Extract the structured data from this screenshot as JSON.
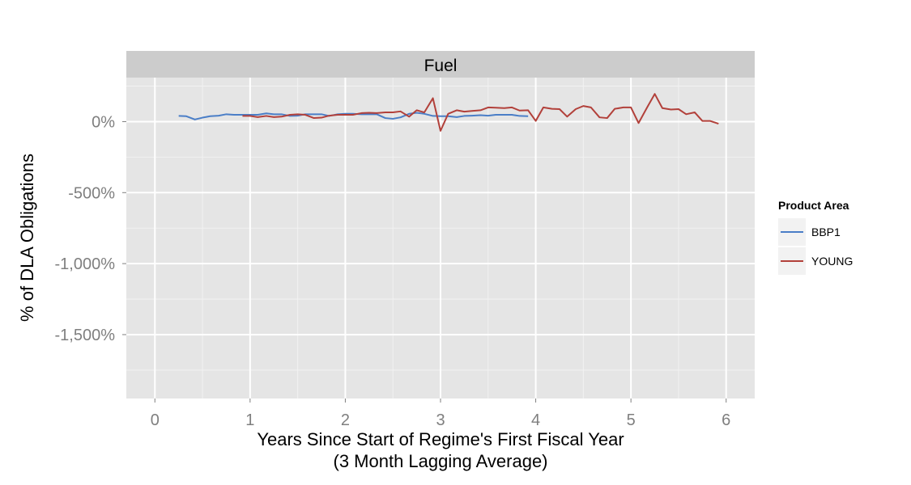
{
  "chart_data": {
    "type": "line",
    "facet": "Fuel",
    "xlabel": "Years Since Start of Regime's First Fiscal Year",
    "xlabel_sub": "(3 Month Lagging Average)",
    "ylabel": "% of DLA Obligations",
    "xlim": [
      -0.3,
      6.3
    ],
    "ylim": [
      -1950,
      310
    ],
    "x_ticks": [
      0,
      1,
      2,
      3,
      4,
      5,
      6
    ],
    "x_tick_labels": [
      "0",
      "1",
      "2",
      "3",
      "4",
      "5",
      "6"
    ],
    "y_ticks": [
      0,
      -500,
      -1000,
      -1500
    ],
    "y_tick_labels": [
      "0%",
      "-500%",
      "-1,000%",
      "-1,500%"
    ],
    "grid": true,
    "legend": {
      "title": "Product Area",
      "position": "right"
    },
    "series": [
      {
        "name": "BBP1",
        "color": "#4A7EC7",
        "x": [
          0.25,
          0.33,
          0.42,
          0.5,
          0.58,
          0.67,
          0.75,
          0.83,
          0.92,
          1.0,
          1.08,
          1.17,
          1.25,
          1.33,
          1.42,
          1.5,
          1.58,
          1.67,
          1.75,
          1.83,
          1.92,
          2.0,
          2.08,
          2.17,
          2.25,
          2.33,
          2.42,
          2.5,
          2.58,
          2.67,
          2.75,
          2.83,
          2.92,
          3.0,
          3.08,
          3.17,
          3.25,
          3.33,
          3.42,
          3.5,
          3.58,
          3.67,
          3.75,
          3.83,
          3.92
        ],
        "values": [
          40,
          38,
          15,
          28,
          38,
          42,
          52,
          48,
          48,
          48,
          48,
          58,
          52,
          52,
          40,
          42,
          52,
          52,
          52,
          40,
          52,
          55,
          55,
          52,
          52,
          52,
          25,
          20,
          30,
          55,
          62,
          55,
          40,
          38,
          38,
          32,
          40,
          42,
          45,
          42,
          48,
          48,
          48,
          40,
          38
        ]
      },
      {
        "name": "YOUNG",
        "color": "#B2403A",
        "x": [
          0.92,
          1.0,
          1.08,
          1.17,
          1.25,
          1.33,
          1.42,
          1.5,
          1.58,
          1.67,
          1.75,
          1.83,
          1.92,
          2.0,
          2.08,
          2.17,
          2.25,
          2.33,
          2.42,
          2.5,
          2.58,
          2.67,
          2.75,
          2.83,
          2.92,
          3.0,
          3.08,
          3.17,
          3.25,
          3.33,
          3.42,
          3.5,
          3.58,
          3.67,
          3.75,
          3.83,
          3.92,
          4.0,
          4.08,
          4.17,
          4.25,
          4.33,
          4.42,
          4.5,
          4.58,
          4.67,
          4.75,
          4.83,
          4.92,
          5.0,
          5.08,
          5.17,
          5.25,
          5.33,
          5.42,
          5.5,
          5.58,
          5.67,
          5.75,
          5.83,
          5.92
        ],
        "values": [
          40,
          40,
          32,
          40,
          32,
          35,
          48,
          52,
          48,
          25,
          28,
          42,
          48,
          48,
          48,
          60,
          62,
          60,
          65,
          65,
          72,
          35,
          80,
          65,
          165,
          -65,
          55,
          80,
          70,
          75,
          80,
          100,
          98,
          95,
          100,
          78,
          80,
          5,
          100,
          90,
          88,
          35,
          88,
          110,
          100,
          30,
          25,
          90,
          100,
          100,
          -10,
          100,
          195,
          95,
          85,
          88,
          52,
          65,
          5,
          5,
          -15
        ]
      }
    ]
  }
}
